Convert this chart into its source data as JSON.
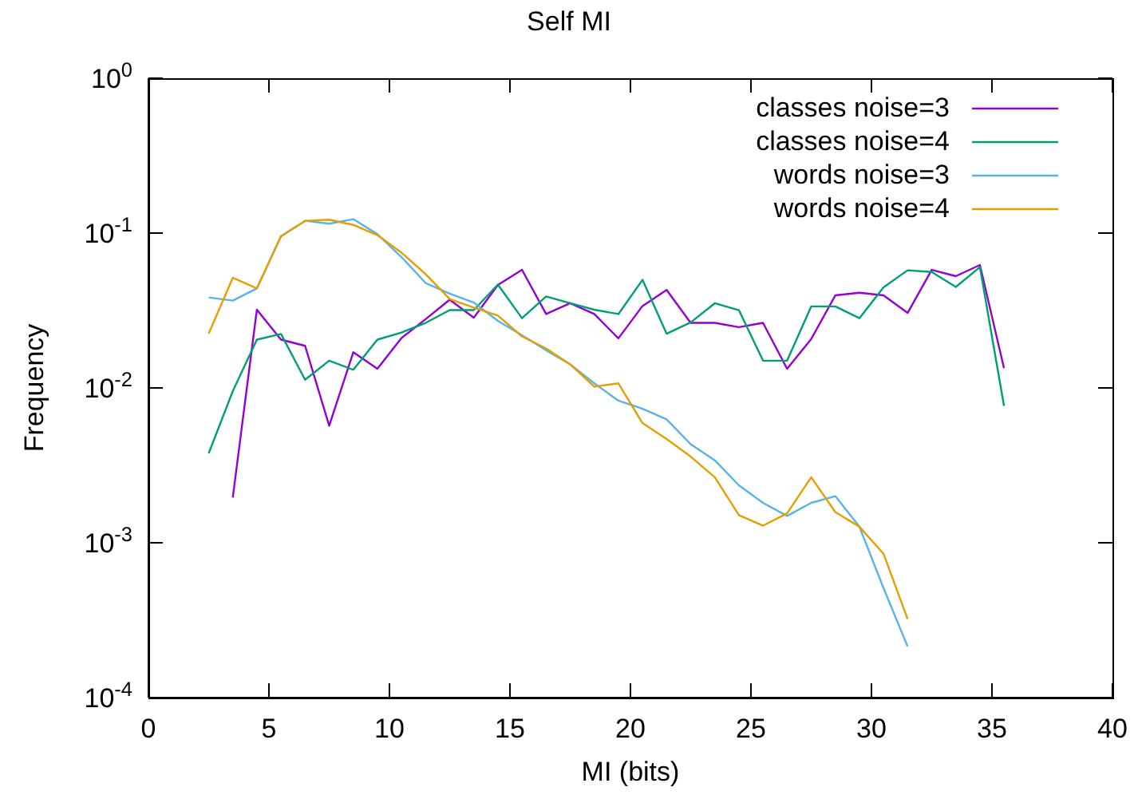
{
  "chart_data": {
    "type": "line",
    "title": "Self MI",
    "xlabel": "MI (bits)",
    "ylabel": "Frequency",
    "log": "y",
    "grid": false,
    "legend": "top right",
    "marker": "none",
    "line_style": "solid",
    "xlim": [
      0,
      40
    ],
    "xticks": [
      0,
      5,
      10,
      15,
      20,
      25,
      30,
      35,
      40
    ],
    "ylim": [
      0.0001,
      1
    ],
    "yticks": [
      {
        "value": 0.0001,
        "label": "10$^{-4}$"
      },
      {
        "value": 0.001,
        "label": "10$^{-3}$"
      },
      {
        "value": 0.01,
        "label": "10$^{-2}$"
      },
      {
        "value": 0.1,
        "label": "10$^{-1}$"
      },
      {
        "value": 1,
        "label": "10$^{0}$"
      }
    ],
    "series": [
      {
        "name": "classes noise=3",
        "color": "#9400d3",
        "x": [
          3.5,
          4.5,
          5.5,
          6.5,
          7.5,
          8.5,
          9.5,
          10.5,
          11.5,
          12.5,
          13.5,
          14.5,
          15.5,
          16.5,
          17.5,
          18.5,
          19.5,
          20.5,
          21.5,
          22.5,
          23.5,
          24.5,
          25.5,
          26.5,
          27.5,
          28.5,
          29.5,
          30.5,
          31.5,
          32.5,
          33.5,
          34.5,
          35.5
        ],
        "values": [
          0.00196,
          0.032,
          0.0205,
          0.0187,
          0.0057,
          0.017,
          0.0133,
          0.021,
          0.0278,
          0.0371,
          0.0284,
          0.0462,
          0.0579,
          0.03,
          0.0352,
          0.03,
          0.0209,
          0.0338,
          0.0429,
          0.0263,
          0.0263,
          0.0247,
          0.0263,
          0.0133,
          0.0207,
          0.0396,
          0.0412,
          0.0396,
          0.0305,
          0.0579,
          0.0527,
          0.0622,
          0.0134
        ]
      },
      {
        "name": "classes noise=4",
        "color": "#009e73",
        "x": [
          2.5,
          3.5,
          4.5,
          5.5,
          6.5,
          7.5,
          8.5,
          9.5,
          10.5,
          11.5,
          12.5,
          13.5,
          14.5,
          15.5,
          16.5,
          17.5,
          18.5,
          19.5,
          20.5,
          21.5,
          22.5,
          23.5,
          24.5,
          25.5,
          26.5,
          27.5,
          28.5,
          29.5,
          30.5,
          31.5,
          32.5,
          33.5,
          34.5,
          35.5
        ],
        "values": [
          0.00378,
          0.00953,
          0.0205,
          0.0223,
          0.0113,
          0.015,
          0.0131,
          0.0205,
          0.0228,
          0.0263,
          0.0318,
          0.0318,
          0.0465,
          0.0282,
          0.039,
          0.0352,
          0.032,
          0.03,
          0.0499,
          0.0224,
          0.0265,
          0.0352,
          0.0318,
          0.015,
          0.015,
          0.0336,
          0.0336,
          0.0282,
          0.0446,
          0.0575,
          0.0561,
          0.0449,
          0.0603,
          0.00765
        ]
      },
      {
        "name": "words noise=3",
        "color": "#56b4e9",
        "x": [
          2.5,
          3.5,
          4.5,
          5.5,
          6.5,
          7.5,
          8.5,
          9.5,
          10.5,
          11.5,
          12.5,
          13.5,
          14.5,
          15.5,
          16.5,
          17.5,
          18.5,
          19.5,
          20.5,
          21.5,
          22.5,
          23.5,
          24.5,
          25.5,
          26.5,
          27.5,
          28.5,
          29.5,
          30.5,
          31.5
        ],
        "values": [
          0.0384,
          0.0366,
          0.0439,
          0.0954,
          0.12,
          0.115,
          0.123,
          0.0984,
          0.07,
          0.0476,
          0.0406,
          0.0356,
          0.0271,
          0.0219,
          0.0175,
          0.0142,
          0.0107,
          0.00828,
          0.00734,
          0.00627,
          0.00433,
          0.00341,
          0.00235,
          0.00181,
          0.00149,
          0.00181,
          0.002,
          0.00127,
          0.00051,
          0.000214
        ]
      },
      {
        "name": "words noise=4",
        "color": "#e69f00",
        "x": [
          2.5,
          3.5,
          4.5,
          5.5,
          6.5,
          7.5,
          8.5,
          9.5,
          10.5,
          11.5,
          12.5,
          13.5,
          14.5,
          15.5,
          16.5,
          17.5,
          18.5,
          19.5,
          20.5,
          21.5,
          22.5,
          23.5,
          24.5,
          25.5,
          26.5,
          27.5,
          28.5,
          29.5,
          30.5,
          31.5
        ],
        "values": [
          0.0224,
          0.0515,
          0.0439,
          0.0954,
          0.12,
          0.122,
          0.113,
          0.097,
          0.0747,
          0.0543,
          0.0375,
          0.033,
          0.0293,
          0.0215,
          0.018,
          0.0142,
          0.0102,
          0.0107,
          0.00593,
          0.00468,
          0.0036,
          0.00265,
          0.00151,
          0.00129,
          0.00155,
          0.00265,
          0.00158,
          0.00127,
          0.00085,
          0.000322
        ]
      }
    ]
  }
}
